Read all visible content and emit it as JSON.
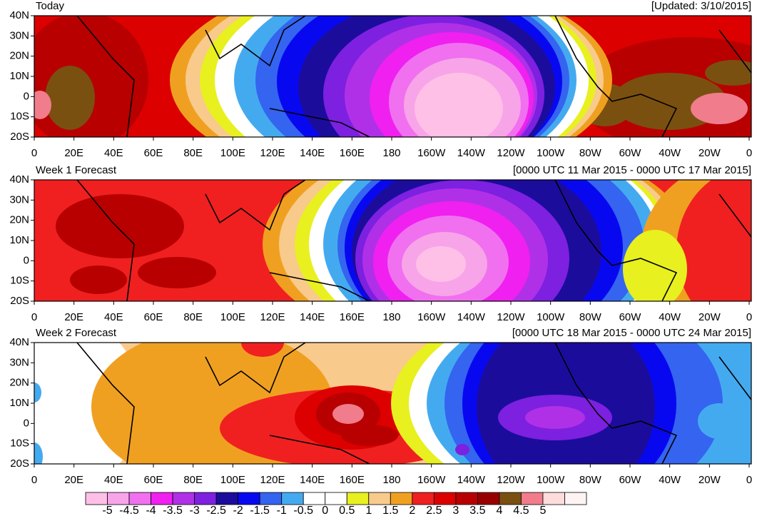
{
  "panels": [
    {
      "title": "Today",
      "subtitle": "[Updated: 3/10/2015]"
    },
    {
      "title": "Week 1 Forecast",
      "subtitle": "[0000 UTC 11 Mar 2015 - 0000 UTC 17 Mar 2015]"
    },
    {
      "title": "Week 2 Forecast",
      "subtitle": "[0000 UTC 18 Mar 2015 - 0000 UTC 24 Mar 2015]"
    }
  ],
  "axes": {
    "y_labels": [
      "40N",
      "30N",
      "20N",
      "10N",
      "0",
      "10S",
      "20S"
    ],
    "x_labels": [
      "0",
      "20E",
      "40E",
      "60E",
      "80E",
      "100E",
      "120E",
      "140E",
      "160E",
      "180",
      "160W",
      "140W",
      "120W",
      "100W",
      "80W",
      "60W",
      "40W",
      "20W",
      "0"
    ]
  },
  "colorbar": {
    "labels": [
      -5,
      -4.5,
      -4,
      -3.5,
      -3,
      -2.5,
      -2,
      -1.5,
      -1,
      -0.5,
      0,
      0.5,
      1,
      1.5,
      2,
      2.5,
      3,
      3.5,
      4,
      4.5,
      5
    ],
    "colors": [
      "#ffc0e8",
      "#f8a4e8",
      "#f070f0",
      "#f020f0",
      "#b030e8",
      "#7d20e0",
      "#1c0c9c",
      "#0808f0",
      "#3464f0",
      "#44aaf0",
      "#ffffff",
      "#ffffff",
      "#e8f020",
      "#f8ca8c",
      "#f0a020",
      "#f02020",
      "#dc0000",
      "#b80000",
      "#980000",
      "#7a5010",
      "#f07c8c",
      "#ffdcdc",
      "#fff4f4"
    ]
  }
}
